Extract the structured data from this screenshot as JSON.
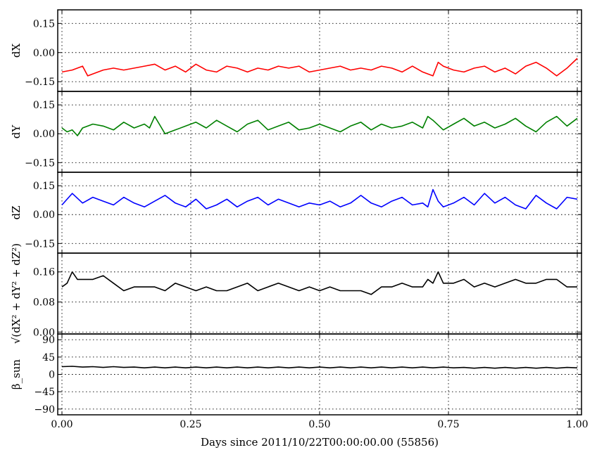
{
  "chart_data": {
    "type": "line",
    "xlabel": "Days since 2011/10/22T00:00:00.00 (55856)",
    "x_ticks": [
      "0.00",
      "0.25",
      "0.50",
      "0.75",
      "1.00"
    ],
    "xlim": [
      0,
      1
    ],
    "grid": true,
    "panels": [
      {
        "ylabel": "dX",
        "ylim": [
          -0.2,
          0.22
        ],
        "y_ticks": [
          "0.15",
          "0.00",
          "−0.15"
        ],
        "y_tick_values": [
          0.15,
          0.0,
          -0.15
        ],
        "color": "#ff0000",
        "x": [
          0.0,
          0.02,
          0.04,
          0.05,
          0.06,
          0.08,
          0.1,
          0.12,
          0.14,
          0.16,
          0.18,
          0.2,
          0.22,
          0.24,
          0.26,
          0.28,
          0.3,
          0.32,
          0.34,
          0.36,
          0.38,
          0.4,
          0.42,
          0.44,
          0.46,
          0.48,
          0.5,
          0.52,
          0.54,
          0.56,
          0.58,
          0.6,
          0.62,
          0.64,
          0.66,
          0.68,
          0.7,
          0.72,
          0.73,
          0.74,
          0.76,
          0.78,
          0.8,
          0.82,
          0.84,
          0.86,
          0.88,
          0.9,
          0.92,
          0.94,
          0.96,
          0.98,
          1.0
        ],
        "values": [
          -0.1,
          -0.09,
          -0.07,
          -0.12,
          -0.11,
          -0.09,
          -0.08,
          -0.09,
          -0.08,
          -0.07,
          -0.06,
          -0.09,
          -0.07,
          -0.1,
          -0.06,
          -0.09,
          -0.1,
          -0.07,
          -0.08,
          -0.1,
          -0.08,
          -0.09,
          -0.07,
          -0.08,
          -0.07,
          -0.1,
          -0.09,
          -0.08,
          -0.07,
          -0.09,
          -0.08,
          -0.09,
          -0.07,
          -0.08,
          -0.1,
          -0.07,
          -0.1,
          -0.12,
          -0.05,
          -0.07,
          -0.09,
          -0.1,
          -0.08,
          -0.07,
          -0.1,
          -0.08,
          -0.11,
          -0.07,
          -0.05,
          -0.08,
          -0.12,
          -0.08,
          -0.03
        ]
      },
      {
        "ylabel": "dY",
        "ylim": [
          -0.2,
          0.22
        ],
        "y_ticks": [
          "0.15",
          "0.00",
          "−0.15"
        ],
        "y_tick_values": [
          0.15,
          0.0,
          -0.15
        ],
        "color": "#008000",
        "x": [
          0.0,
          0.01,
          0.02,
          0.03,
          0.04,
          0.06,
          0.08,
          0.1,
          0.12,
          0.14,
          0.16,
          0.17,
          0.18,
          0.2,
          0.22,
          0.24,
          0.26,
          0.28,
          0.3,
          0.32,
          0.34,
          0.36,
          0.38,
          0.4,
          0.42,
          0.44,
          0.46,
          0.48,
          0.5,
          0.52,
          0.54,
          0.56,
          0.58,
          0.6,
          0.62,
          0.64,
          0.66,
          0.68,
          0.7,
          0.71,
          0.72,
          0.74,
          0.76,
          0.78,
          0.8,
          0.82,
          0.84,
          0.86,
          0.88,
          0.9,
          0.92,
          0.94,
          0.96,
          0.98,
          1.0
        ],
        "values": [
          0.03,
          0.01,
          0.02,
          -0.01,
          0.03,
          0.05,
          0.04,
          0.02,
          0.06,
          0.03,
          0.05,
          0.03,
          0.09,
          0.0,
          0.02,
          0.04,
          0.06,
          0.03,
          0.07,
          0.04,
          0.01,
          0.05,
          0.07,
          0.02,
          0.04,
          0.06,
          0.02,
          0.03,
          0.05,
          0.03,
          0.01,
          0.04,
          0.06,
          0.02,
          0.05,
          0.03,
          0.04,
          0.06,
          0.03,
          0.09,
          0.07,
          0.02,
          0.05,
          0.08,
          0.04,
          0.06,
          0.03,
          0.05,
          0.08,
          0.04,
          0.01,
          0.06,
          0.09,
          0.04,
          0.08
        ]
      },
      {
        "ylabel": "dZ",
        "ylim": [
          -0.2,
          0.22
        ],
        "y_ticks": [
          "0.15",
          "0.00",
          "−0.15"
        ],
        "y_tick_values": [
          0.15,
          0.0,
          -0.15
        ],
        "color": "#0000ff",
        "x": [
          0.0,
          0.02,
          0.04,
          0.06,
          0.08,
          0.1,
          0.12,
          0.14,
          0.16,
          0.18,
          0.2,
          0.22,
          0.24,
          0.26,
          0.28,
          0.3,
          0.32,
          0.34,
          0.36,
          0.38,
          0.4,
          0.42,
          0.44,
          0.46,
          0.48,
          0.5,
          0.52,
          0.54,
          0.56,
          0.58,
          0.6,
          0.62,
          0.64,
          0.66,
          0.68,
          0.7,
          0.71,
          0.72,
          0.73,
          0.74,
          0.76,
          0.78,
          0.8,
          0.82,
          0.84,
          0.86,
          0.88,
          0.9,
          0.92,
          0.94,
          0.96,
          0.98,
          1.0
        ],
        "values": [
          0.05,
          0.11,
          0.06,
          0.09,
          0.07,
          0.05,
          0.09,
          0.06,
          0.04,
          0.07,
          0.1,
          0.06,
          0.04,
          0.08,
          0.03,
          0.05,
          0.08,
          0.04,
          0.07,
          0.09,
          0.05,
          0.08,
          0.06,
          0.04,
          0.06,
          0.05,
          0.07,
          0.04,
          0.06,
          0.1,
          0.06,
          0.04,
          0.07,
          0.09,
          0.05,
          0.06,
          0.04,
          0.13,
          0.07,
          0.04,
          0.06,
          0.09,
          0.05,
          0.11,
          0.06,
          0.09,
          0.05,
          0.03,
          0.1,
          0.06,
          0.03,
          0.09,
          0.08
        ]
      },
      {
        "ylabel": "√(dX² + dY² + dZ²)",
        "ylim": [
          -0.005,
          0.21
        ],
        "y_ticks": [
          "0.16",
          "0.08",
          "0.00"
        ],
        "y_tick_values": [
          0.16,
          0.08,
          0.0
        ],
        "color": "#000000",
        "x": [
          0.0,
          0.01,
          0.02,
          0.03,
          0.04,
          0.06,
          0.08,
          0.1,
          0.12,
          0.14,
          0.16,
          0.18,
          0.2,
          0.22,
          0.24,
          0.26,
          0.28,
          0.3,
          0.32,
          0.34,
          0.36,
          0.38,
          0.4,
          0.42,
          0.44,
          0.46,
          0.48,
          0.5,
          0.52,
          0.54,
          0.56,
          0.58,
          0.6,
          0.62,
          0.64,
          0.66,
          0.68,
          0.7,
          0.71,
          0.72,
          0.73,
          0.74,
          0.76,
          0.78,
          0.8,
          0.82,
          0.84,
          0.86,
          0.88,
          0.9,
          0.92,
          0.94,
          0.96,
          0.98,
          1.0
        ],
        "values": [
          0.12,
          0.13,
          0.16,
          0.14,
          0.14,
          0.14,
          0.15,
          0.13,
          0.11,
          0.12,
          0.12,
          0.12,
          0.11,
          0.13,
          0.12,
          0.11,
          0.12,
          0.11,
          0.11,
          0.12,
          0.13,
          0.11,
          0.12,
          0.13,
          0.12,
          0.11,
          0.12,
          0.11,
          0.12,
          0.11,
          0.11,
          0.11,
          0.1,
          0.12,
          0.12,
          0.13,
          0.12,
          0.12,
          0.14,
          0.13,
          0.16,
          0.13,
          0.13,
          0.14,
          0.12,
          0.13,
          0.12,
          0.13,
          0.14,
          0.13,
          0.13,
          0.14,
          0.14,
          0.12,
          0.12
        ]
      },
      {
        "ylabel": "β_sun",
        "ylim": [
          -105,
          105
        ],
        "y_ticks": [
          "90",
          "45",
          "0",
          "−45",
          "−90"
        ],
        "y_tick_values": [
          90,
          45,
          0,
          -45,
          -90
        ],
        "color": "#000000",
        "x": [
          0.0,
          0.02,
          0.04,
          0.06,
          0.08,
          0.1,
          0.12,
          0.14,
          0.16,
          0.18,
          0.2,
          0.22,
          0.24,
          0.26,
          0.28,
          0.3,
          0.32,
          0.34,
          0.36,
          0.38,
          0.4,
          0.42,
          0.44,
          0.46,
          0.48,
          0.5,
          0.52,
          0.54,
          0.56,
          0.58,
          0.6,
          0.62,
          0.64,
          0.66,
          0.68,
          0.7,
          0.72,
          0.74,
          0.76,
          0.78,
          0.8,
          0.82,
          0.84,
          0.86,
          0.88,
          0.9,
          0.92,
          0.94,
          0.96,
          0.98,
          1.0
        ],
        "values": [
          20,
          21,
          19,
          20,
          18,
          20,
          18,
          19,
          17,
          19,
          17,
          19,
          17,
          19,
          17,
          19,
          17,
          19,
          17,
          19,
          17,
          19,
          17,
          19,
          17,
          19,
          17,
          19,
          17,
          19,
          17,
          19,
          17,
          19,
          17,
          19,
          17,
          19,
          17,
          18,
          16,
          18,
          16,
          18,
          16,
          18,
          16,
          18,
          16,
          18,
          17
        ]
      }
    ]
  }
}
